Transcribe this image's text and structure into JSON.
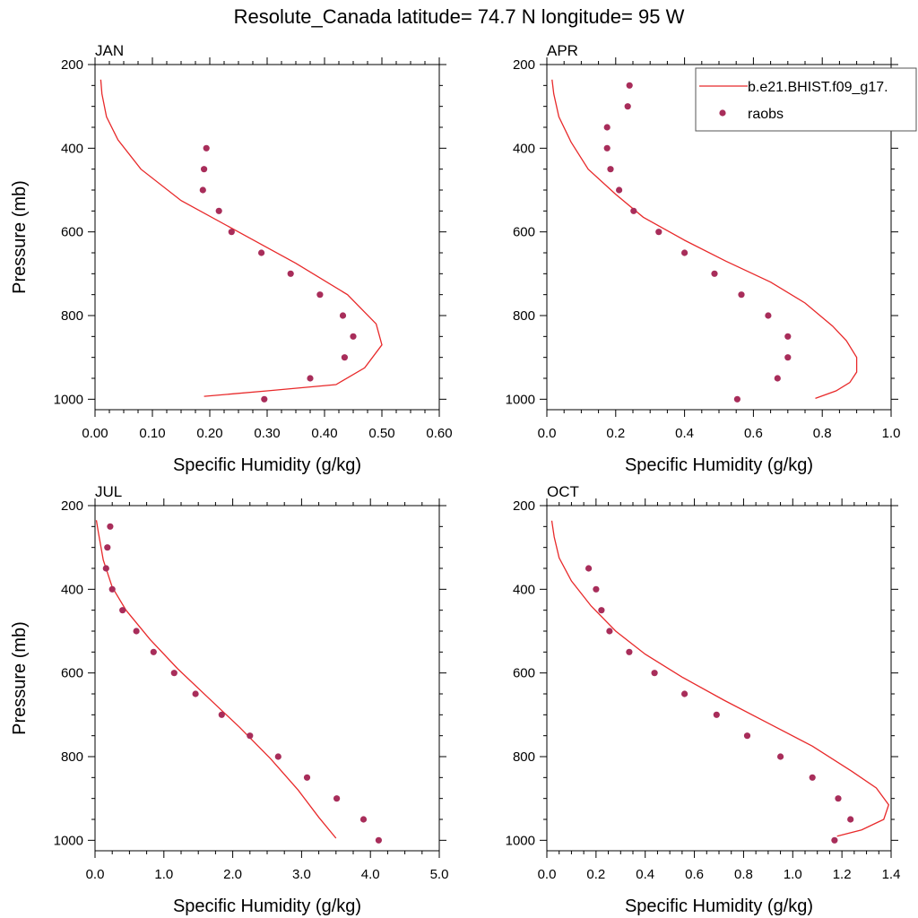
{
  "figure": {
    "title": "Resolute_Canada  latitude= 74.7 N longitude= 95 W",
    "model_color": "#e8292a",
    "obs_color": "#a82d5a"
  },
  "legend": {
    "model_label": "b.e21.BHIST.f09_g17.",
    "obs_label": "raobs"
  },
  "chart_data": [
    {
      "type": "line",
      "panel": "JAN",
      "xlabel": "Specific Humidity (g/kg)",
      "ylabel": "Pressure (mb)",
      "xlim": [
        0,
        0.6
      ],
      "xticks": [
        "0.00",
        "0.10",
        "0.20",
        "0.30",
        "0.40",
        "0.50",
        "0.60"
      ],
      "ylim": [
        200,
        1025
      ],
      "yticks": [
        "200",
        "400",
        "600",
        "800",
        "1000"
      ],
      "y_reversed": true,
      "model": {
        "x": [
          0.01,
          0.012,
          0.02,
          0.04,
          0.08,
          0.15,
          0.25,
          0.35,
          0.44,
          0.49,
          0.5,
          0.47,
          0.42,
          0.3,
          0.19
        ],
        "p": [
          236,
          270,
          325,
          380,
          450,
          525,
          600,
          675,
          750,
          820,
          870,
          925,
          965,
          980,
          993
        ]
      },
      "obs": {
        "x": [
          0.194,
          0.19,
          0.188,
          0.216,
          0.238,
          0.29,
          0.341,
          0.392,
          0.432,
          0.45,
          0.435,
          0.375,
          0.295
        ],
        "p": [
          400,
          450,
          500,
          550,
          600,
          650,
          700,
          750,
          800,
          850,
          900,
          950,
          1000
        ]
      }
    },
    {
      "type": "line",
      "panel": "APR",
      "xlabel": "Specific Humidity (g/kg)",
      "ylabel": "",
      "xlim": [
        0,
        1.0
      ],
      "xticks": [
        "0.0",
        "0.2",
        "0.4",
        "0.6",
        "0.8",
        "1.0"
      ],
      "ylim": [
        200,
        1025
      ],
      "yticks": [
        "200",
        "400",
        "600",
        "800",
        "1000"
      ],
      "y_reversed": true,
      "model": {
        "x": [
          0.015,
          0.02,
          0.035,
          0.07,
          0.12,
          0.2,
          0.28,
          0.4,
          0.52,
          0.65,
          0.75,
          0.83,
          0.87,
          0.9,
          0.9,
          0.88,
          0.84,
          0.78
        ],
        "p": [
          236,
          270,
          325,
          385,
          450,
          510,
          565,
          620,
          670,
          720,
          770,
          825,
          860,
          900,
          935,
          960,
          980,
          998
        ]
      },
      "obs": {
        "x": [
          0.24,
          0.235,
          0.175,
          0.175,
          0.185,
          0.21,
          0.252,
          0.325,
          0.4,
          0.487,
          0.565,
          0.643,
          0.7,
          0.7,
          0.67,
          0.553
        ],
        "p": [
          250,
          300,
          350,
          400,
          450,
          500,
          550,
          600,
          650,
          700,
          750,
          800,
          850,
          900,
          950,
          1000
        ]
      }
    },
    {
      "type": "line",
      "panel": "JUL",
      "xlabel": "Specific Humidity (g/kg)",
      "ylabel": "Pressure (mb)",
      "xlim": [
        0,
        5.0
      ],
      "xticks": [
        "0.0",
        "1.0",
        "2.0",
        "3.0",
        "4.0",
        "5.0"
      ],
      "ylim": [
        200,
        1025
      ],
      "yticks": [
        "200",
        "400",
        "600",
        "800",
        "1000"
      ],
      "y_reversed": true,
      "model": {
        "x": [
          0.02,
          0.05,
          0.12,
          0.25,
          0.45,
          0.8,
          1.2,
          1.65,
          2.1,
          2.55,
          2.95,
          3.25,
          3.5
        ],
        "p": [
          235,
          265,
          330,
          395,
          450,
          520,
          590,
          660,
          730,
          805,
          880,
          945,
          995
        ]
      },
      "obs": {
        "x": [
          0.22,
          0.18,
          0.16,
          0.25,
          0.4,
          0.6,
          0.85,
          1.15,
          1.46,
          1.84,
          2.25,
          2.66,
          3.08,
          3.51,
          3.9,
          4.12
        ],
        "p": [
          250,
          300,
          350,
          400,
          450,
          500,
          550,
          600,
          650,
          700,
          750,
          800,
          850,
          900,
          950,
          1000
        ]
      }
    },
    {
      "type": "line",
      "panel": "OCT",
      "xlabel": "Specific Humidity (g/kg)",
      "ylabel": "",
      "xlim": [
        0,
        1.4
      ],
      "xticks": [
        "0.0",
        "0.2",
        "0.4",
        "0.6",
        "0.8",
        "1.0",
        "1.2",
        "1.4"
      ],
      "ylim": [
        200,
        1025
      ],
      "yticks": [
        "200",
        "400",
        "600",
        "800",
        "1000"
      ],
      "y_reversed": true,
      "model": {
        "x": [
          0.02,
          0.03,
          0.05,
          0.1,
          0.18,
          0.28,
          0.4,
          0.55,
          0.72,
          0.9,
          1.08,
          1.24,
          1.34,
          1.39,
          1.37,
          1.28,
          1.18
        ],
        "p": [
          236,
          275,
          325,
          380,
          440,
          500,
          555,
          610,
          665,
          720,
          775,
          835,
          875,
          915,
          950,
          975,
          990
        ]
      },
      "obs": {
        "x": [
          0.17,
          0.2,
          0.222,
          0.255,
          0.335,
          0.438,
          0.56,
          0.69,
          0.815,
          0.95,
          1.08,
          1.185,
          1.235,
          1.17
        ],
        "p": [
          350,
          400,
          450,
          500,
          550,
          600,
          650,
          700,
          750,
          800,
          850,
          900,
          950,
          1000
        ]
      }
    }
  ]
}
